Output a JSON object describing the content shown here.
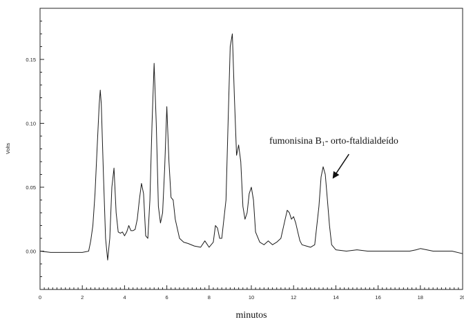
{
  "chart_data": {
    "type": "line",
    "xlabel": "minutos",
    "ylabel": "Volts",
    "xlim": [
      0,
      20
    ],
    "ylim": [
      -0.03,
      0.19
    ],
    "x_ticks": [
      0,
      2,
      4,
      6,
      8,
      10,
      12,
      14,
      16,
      18,
      20
    ],
    "x_tick_labels": [
      "0",
      "2",
      "4",
      "6",
      "8",
      "10",
      "12",
      "14",
      "16",
      "18",
      "20"
    ],
    "y_ticks": [
      0.0,
      0.05,
      0.1,
      0.15
    ],
    "y_tick_labels": [
      "0.00",
      "0.05",
      "0.10",
      "0.15"
    ],
    "grid": false,
    "series": [
      {
        "color": "#1a1a1a",
        "x": [
          0.0,
          0.5,
          1.0,
          1.5,
          2.0,
          2.3,
          2.4,
          2.5,
          2.6,
          2.7,
          2.8,
          2.85,
          2.9,
          3.0,
          3.1,
          3.2,
          3.3,
          3.4,
          3.5,
          3.6,
          3.7,
          3.8,
          3.9,
          4.0,
          4.1,
          4.2,
          4.3,
          4.4,
          4.5,
          4.6,
          4.7,
          4.8,
          4.9,
          5.0,
          5.1,
          5.2,
          5.3,
          5.4,
          5.5,
          5.6,
          5.7,
          5.8,
          5.9,
          6.0,
          6.1,
          6.2,
          6.3,
          6.4,
          6.6,
          6.8,
          7.0,
          7.3,
          7.6,
          7.8,
          8.0,
          8.2,
          8.3,
          8.4,
          8.5,
          8.6,
          8.8,
          8.9,
          9.0,
          9.1,
          9.2,
          9.3,
          9.4,
          9.5,
          9.6,
          9.7,
          9.8,
          9.9,
          10.0,
          10.1,
          10.2,
          10.4,
          10.6,
          10.8,
          11.0,
          11.2,
          11.4,
          11.6,
          11.7,
          11.8,
          11.9,
          12.0,
          12.1,
          12.2,
          12.3,
          12.4,
          12.6,
          12.8,
          13.0,
          13.2,
          13.3,
          13.4,
          13.5,
          13.6,
          13.7,
          13.8,
          14.0,
          14.5,
          15.0,
          15.5,
          16.0,
          16.5,
          17.0,
          17.5,
          17.8,
          18.0,
          18.3,
          18.6,
          19.0,
          19.5,
          20.0
        ],
        "y": [
          0.0,
          -0.001,
          -0.001,
          -0.001,
          -0.001,
          0.0,
          0.008,
          0.02,
          0.045,
          0.08,
          0.115,
          0.126,
          0.115,
          0.06,
          0.01,
          -0.007,
          0.01,
          0.05,
          0.065,
          0.03,
          0.015,
          0.014,
          0.015,
          0.012,
          0.015,
          0.02,
          0.016,
          0.016,
          0.017,
          0.025,
          0.04,
          0.053,
          0.045,
          0.012,
          0.01,
          0.04,
          0.1,
          0.147,
          0.1,
          0.035,
          0.022,
          0.03,
          0.065,
          0.113,
          0.07,
          0.042,
          0.04,
          0.025,
          0.01,
          0.007,
          0.006,
          0.004,
          0.003,
          0.008,
          0.003,
          0.007,
          0.02,
          0.018,
          0.01,
          0.01,
          0.04,
          0.1,
          0.16,
          0.17,
          0.12,
          0.075,
          0.083,
          0.07,
          0.035,
          0.025,
          0.03,
          0.045,
          0.05,
          0.04,
          0.015,
          0.007,
          0.005,
          0.008,
          0.005,
          0.007,
          0.01,
          0.025,
          0.032,
          0.03,
          0.025,
          0.027,
          0.022,
          0.015,
          0.008,
          0.005,
          0.004,
          0.003,
          0.005,
          0.035,
          0.058,
          0.066,
          0.06,
          0.04,
          0.02,
          0.005,
          0.001,
          0.0,
          0.001,
          0.0,
          0.0,
          0.0,
          0.0,
          0.0,
          0.001,
          0.002,
          0.001,
          0.0,
          0.0,
          0.0,
          -0.002
        ]
      }
    ],
    "annotations": [
      {
        "text": "fumonisina B₁- orto-ftaldialdeído",
        "arrow_to": {
          "x": 13.9,
          "y": 0.058
        }
      }
    ]
  }
}
